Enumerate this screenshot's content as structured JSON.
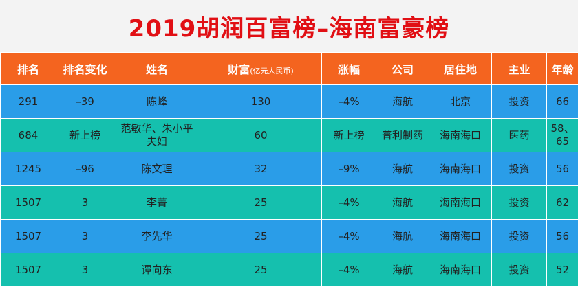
{
  "title": "2019胡润百富榜–海南富豪榜",
  "columns": {
    "rank": "排名",
    "rank_change": "排名变化",
    "name": "姓名",
    "wealth": "财富",
    "wealth_unit": "(亿元人民币)",
    "growth": "涨幅",
    "company": "公司",
    "residence": "居住地",
    "industry": "主业",
    "age": "年龄"
  },
  "colors": {
    "title": "#e10f14",
    "header": "#f4641f",
    "row_blue": "#2a9de8",
    "row_teal": "#15c0ae"
  },
  "rows": [
    {
      "rank": "291",
      "change": "–39",
      "name": "陈峰",
      "wealth": "130",
      "growth": "–4%",
      "company": "海航",
      "residence": "北京",
      "industry": "投资",
      "age": "66"
    },
    {
      "rank": "684",
      "change": "新上榜",
      "name": "范敏华、朱小平夫妇",
      "wealth": "60",
      "growth": "新上榜",
      "company": "普利制药",
      "residence": "海南海口",
      "industry": "医药",
      "age": "58、65"
    },
    {
      "rank": "1245",
      "change": "–96",
      "name": "陈文理",
      "wealth": "32",
      "growth": "–9%",
      "company": "海航",
      "residence": "海南海口",
      "industry": "投资",
      "age": "56"
    },
    {
      "rank": "1507",
      "change": "3",
      "name": "李菁",
      "wealth": "25",
      "growth": "–4%",
      "company": "海航",
      "residence": "海南海口",
      "industry": "投资",
      "age": "62"
    },
    {
      "rank": "1507",
      "change": "3",
      "name": "李先华",
      "wealth": "25",
      "growth": "–4%",
      "company": "海航",
      "residence": "海南海口",
      "industry": "投资",
      "age": "56"
    },
    {
      "rank": "1507",
      "change": "3",
      "name": "谭向东",
      "wealth": "25",
      "growth": "–4%",
      "company": "海航",
      "residence": "海南海口",
      "industry": "投资",
      "age": "52"
    }
  ]
}
